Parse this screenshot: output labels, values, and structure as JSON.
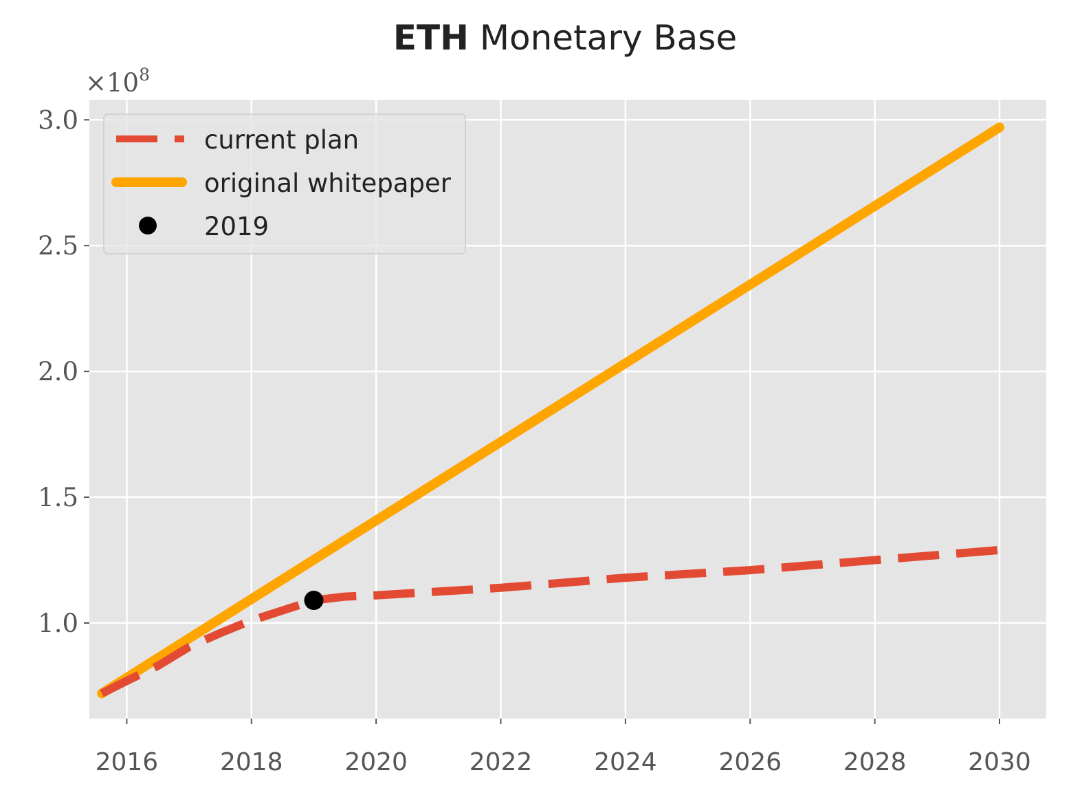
{
  "chart_data": {
    "type": "line",
    "title": "ETH Monetary Base",
    "title_bold": "ETH",
    "title_rest": "Monetary Base",
    "xlabel": "",
    "ylabel": "",
    "y_multiplier_label": "×10",
    "y_multiplier_exponent": "8",
    "xlim": [
      2015.4,
      2030.75
    ],
    "ylim": [
      0.62,
      3.08
    ],
    "x_ticks": [
      2016,
      2018,
      2020,
      2022,
      2024,
      2026,
      2028,
      2030
    ],
    "x_tick_labels": [
      "2016",
      "2018",
      "2020",
      "2022",
      "2024",
      "2026",
      "2028",
      "2030"
    ],
    "y_ticks": [
      1.0,
      1.5,
      2.0,
      2.5,
      3.0
    ],
    "y_tick_labels": [
      "1.0",
      "1.5",
      "2.0",
      "2.5",
      "3.0"
    ],
    "grid": true,
    "legend_placement": "top-left",
    "series": [
      {
        "name": "current plan",
        "style": "dashed",
        "color": "#E24A33",
        "x": [
          2015.6,
          2016.0,
          2016.5,
          2017.0,
          2017.5,
          2018.0,
          2018.5,
          2019.0,
          2019.5,
          2020.0,
          2022.0,
          2024.0,
          2026.0,
          2028.0,
          2030.0
        ],
        "y": [
          0.72,
          0.77,
          0.83,
          0.905,
          0.96,
          1.01,
          1.05,
          1.09,
          1.105,
          1.11,
          1.14,
          1.18,
          1.21,
          1.25,
          1.29
        ]
      },
      {
        "name": "original whitepaper",
        "style": "solid",
        "color": "#FFA500",
        "x": [
          2015.6,
          2030.0
        ],
        "y": [
          0.72,
          2.97
        ]
      },
      {
        "name": "2019",
        "style": "marker",
        "color": "#000000",
        "x": [
          2019.0
        ],
        "y": [
          1.09
        ]
      }
    ]
  },
  "colors": {
    "plot_background": "#E5E5E5",
    "grid": "#FFFFFF",
    "legend_background": "#E5E5E5",
    "legend_border": "#CCCCCC"
  }
}
